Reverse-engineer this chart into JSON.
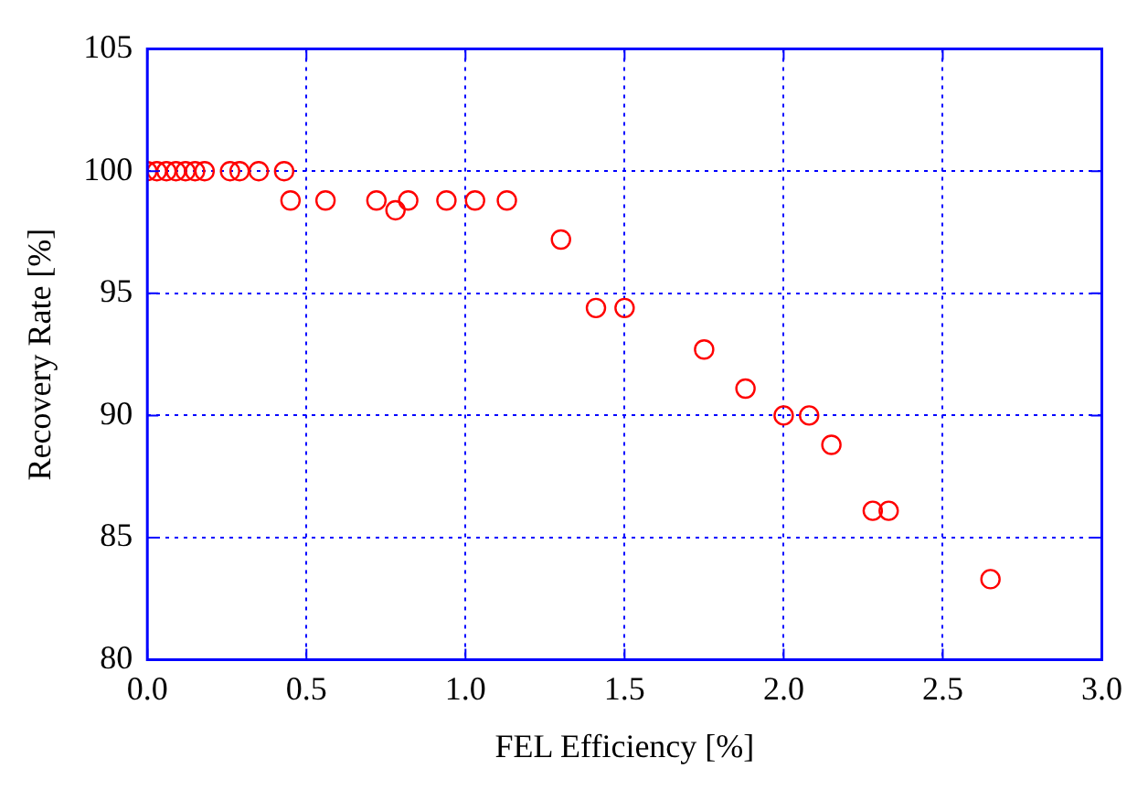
{
  "chart_data": {
    "type": "scatter",
    "xlabel": "FEL Efficiency [%]",
    "ylabel": "Recovery Rate [%]",
    "marker": "circle",
    "grid": true,
    "legend": false,
    "xlim": [
      0,
      3
    ],
    "xticks": [
      {
        "value": 0,
        "label": "0.0"
      },
      0.5,
      {
        "value": 1,
        "label": "1.0"
      },
      1.5,
      {
        "value": 2,
        "label": "2.0"
      },
      2.5,
      {
        "value": 3,
        "label": "3.0"
      }
    ],
    "ylim": [
      80,
      105
    ],
    "yticks": [
      80,
      85,
      90,
      95,
      100,
      105
    ],
    "series": [
      {
        "color": "#ff0000",
        "x": [
          0.0,
          0.03,
          0.06,
          0.09,
          0.12,
          0.15,
          0.18,
          0.26,
          0.29,
          0.35,
          0.43,
          0.45,
          0.56,
          0.72,
          0.78,
          0.82,
          0.94,
          1.03,
          1.13,
          1.3,
          1.41,
          1.5,
          1.75,
          1.88,
          2.0,
          2.08,
          2.15,
          2.28,
          2.33,
          2.65
        ],
        "values": [
          100,
          100,
          100,
          100,
          100,
          100,
          100,
          100,
          100,
          100,
          100,
          98.8,
          98.8,
          98.8,
          98.4,
          98.8,
          98.8,
          98.8,
          98.8,
          97.2,
          94.4,
          94.4,
          92.7,
          91.1,
          90,
          90,
          88.8,
          86.1,
          86.1,
          83.3
        ]
      }
    ]
  }
}
